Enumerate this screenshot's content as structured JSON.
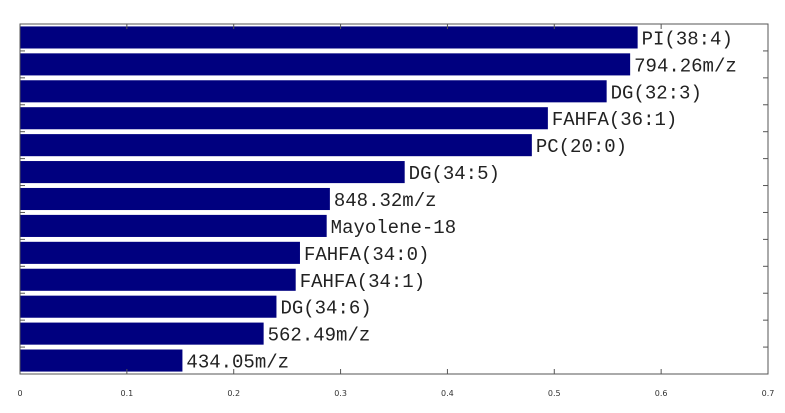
{
  "chart_data": {
    "type": "bar",
    "orientation": "horizontal",
    "categories": [
      "PI(38:4)",
      "794.26m/z",
      "DG(32:3)",
      "FAHFA(36:1)",
      "PC(20:0)",
      "DG(34:5)",
      "848.32m/z",
      "Mayolene-18",
      "FAHFA(34:0)",
      "FAHFA(34:1)",
      "DG(34:6)",
      "562.49m/z",
      "434.05m/z"
    ],
    "values": [
      0.578,
      0.571,
      0.549,
      0.494,
      0.479,
      0.36,
      0.29,
      0.287,
      0.262,
      0.258,
      0.24,
      0.228,
      0.152
    ],
    "xlim": [
      0,
      0.7
    ],
    "x_ticks": [
      "0",
      "0.1",
      "0.2",
      "0.3",
      "0.4",
      "0.5",
      "0.6",
      "0.7"
    ],
    "title": "",
    "xlabel": "",
    "ylabel": "",
    "bar_color": "#00007f",
    "grid": false,
    "legend": "none"
  }
}
